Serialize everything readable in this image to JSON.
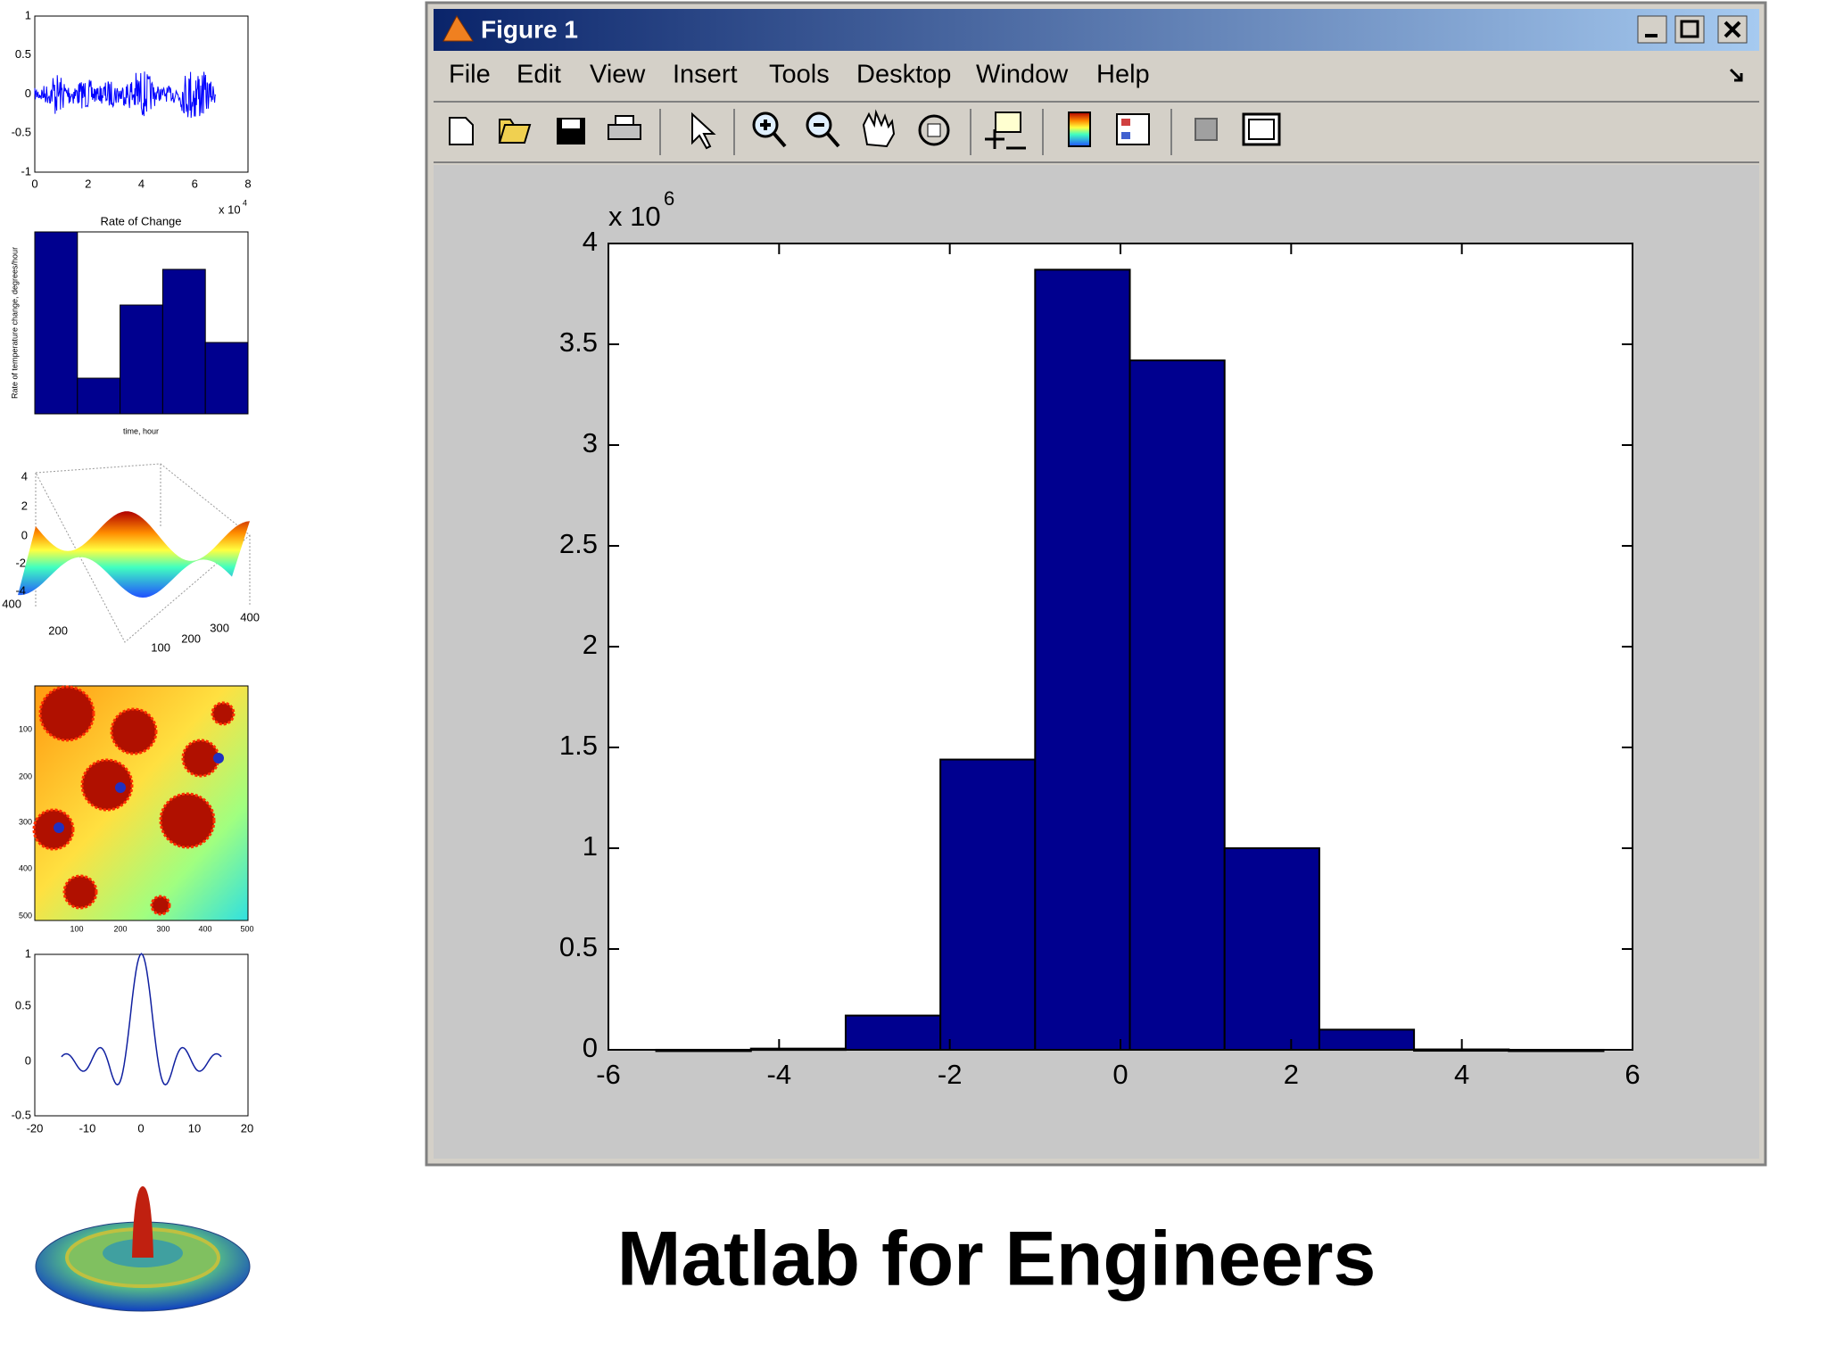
{
  "slide_title": "Matlab for Engineers",
  "window": {
    "title": "Figure 1",
    "menu": [
      "File",
      "Edit",
      "View",
      "Insert",
      "Tools",
      "Desktop",
      "Window",
      "Help"
    ]
  },
  "thumbnails": {
    "signal": {
      "yticks": [
        "1",
        "0.5",
        "0",
        "-0.5",
        "-1"
      ],
      "xticks": [
        "0",
        "2",
        "4",
        "6",
        "8"
      ],
      "exponent_base": "x 10",
      "exponent": "4"
    },
    "rate": {
      "title": "Rate of Change",
      "xlabel": "time, hour",
      "ylabel": "Rate of temperature change, degrees/hour"
    },
    "surface": {
      "zticks": [
        "4",
        "2",
        "0",
        "-2",
        "-4"
      ],
      "yticks": [
        "400",
        "200",
        "100"
      ],
      "xticks": [
        "200",
        "300",
        "400"
      ]
    },
    "fractal": {
      "yticks": [
        "100",
        "200",
        "300",
        "400",
        "500"
      ],
      "xticks": [
        "100",
        "200",
        "300",
        "400",
        "500"
      ]
    },
    "sinc": {
      "yticks": [
        "1",
        "0.5",
        "0",
        "-0.5"
      ],
      "xticks": [
        "-20",
        "-10",
        "0",
        "10",
        "20"
      ]
    }
  },
  "chart_data": {
    "type": "histogram",
    "bins": [
      -5.44,
      -4.33,
      -3.22,
      -2.11,
      -1.0,
      0.11,
      1.22,
      2.33,
      3.44,
      4.55,
      5.66
    ],
    "values": [
      0.0002,
      0.006,
      0.17,
      1.44,
      3.87,
      3.42,
      1.0,
      0.1,
      0.002,
      0.0001
    ],
    "color": "#00008f",
    "edge_color": "#000000",
    "xlim": [
      -6,
      6
    ],
    "xticks": [
      -6,
      -4,
      -2,
      0,
      2,
      4,
      6
    ],
    "ylim": [
      0,
      4
    ],
    "yticks": [
      0,
      0.5,
      1,
      1.5,
      2,
      2.5,
      3,
      3.5,
      4
    ],
    "y_multiplier_base": "x 10",
    "y_multiplier_exponent": "6",
    "grid": false
  }
}
